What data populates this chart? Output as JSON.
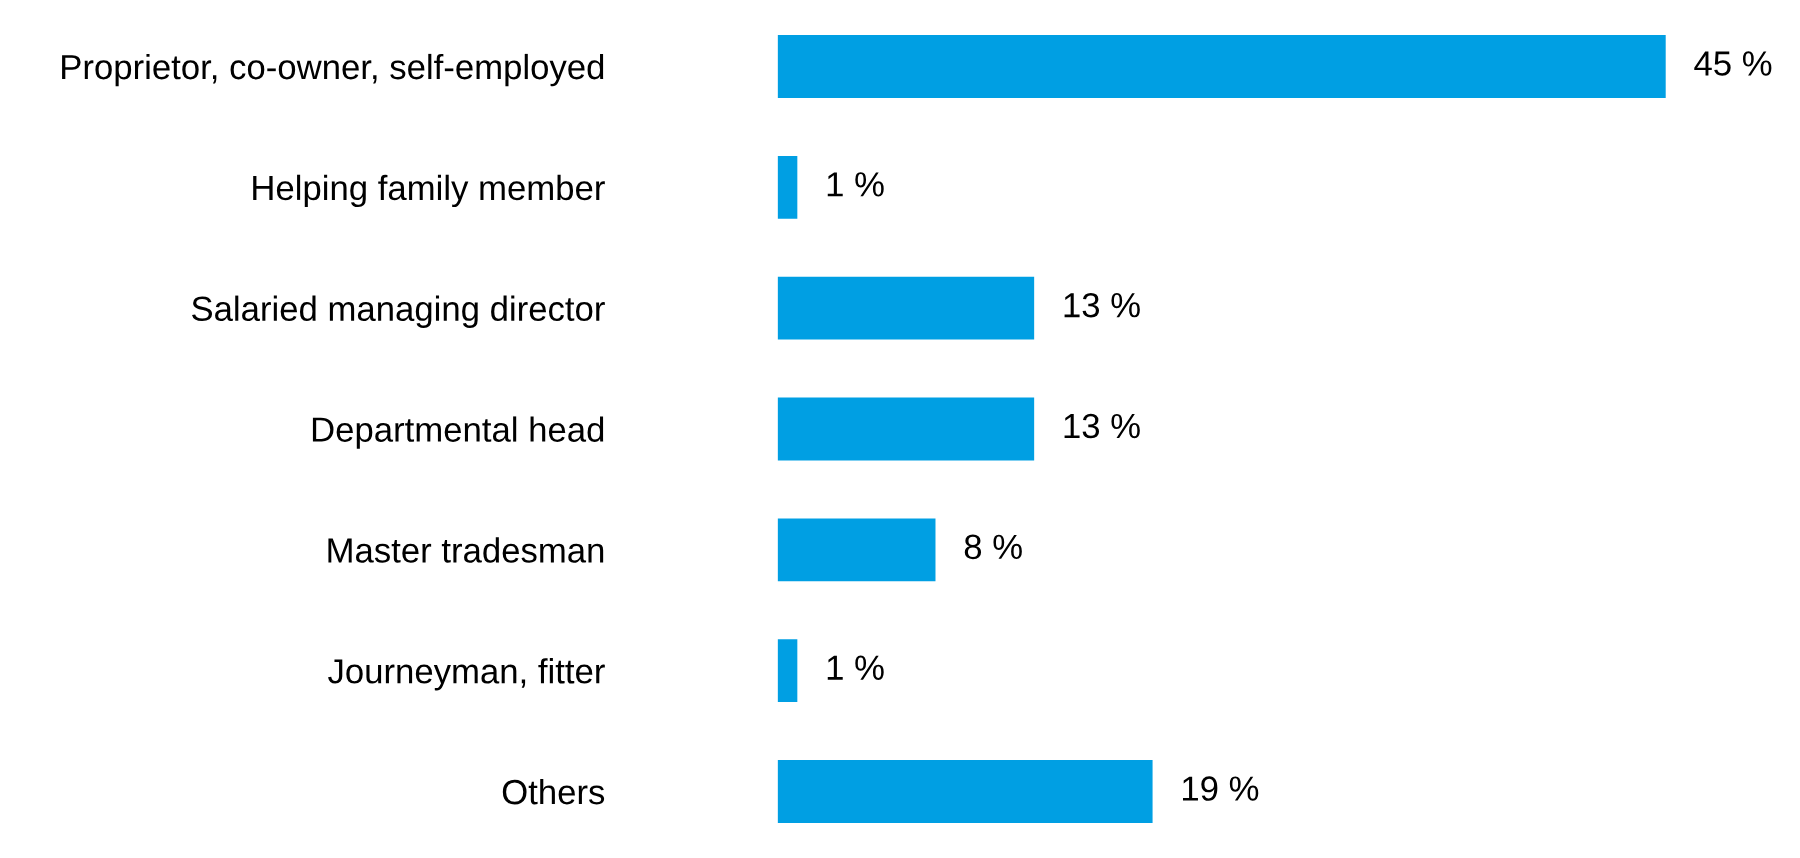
{
  "chart_data": {
    "type": "bar",
    "orientation": "horizontal",
    "categories": [
      "Proprietor, co-owner, self-employed",
      "Helping family member",
      "Salaried managing director",
      "Departmental head",
      "Master tradesman",
      "Journeyman, fitter",
      "Others"
    ],
    "values": [
      45,
      1,
      13,
      13,
      8,
      1,
      19
    ],
    "value_labels": [
      "45 %",
      "1 %",
      "13 %",
      "13 %",
      "8 %",
      "1 %",
      "19 %"
    ],
    "color": "#009fe3",
    "grid": false,
    "legend": false
  }
}
